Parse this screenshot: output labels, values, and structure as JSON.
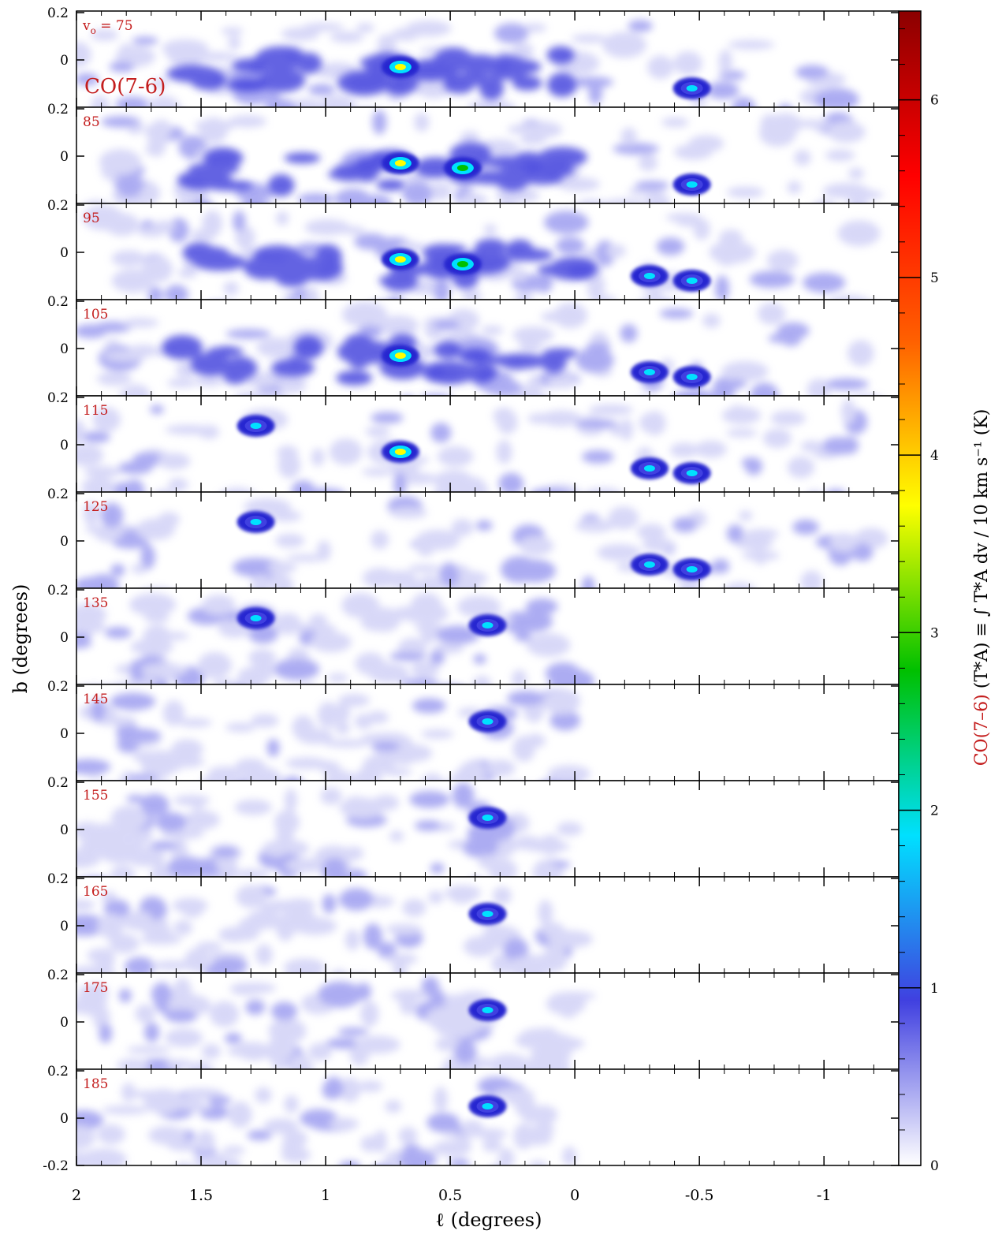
{
  "chart_data": {
    "type": "heatmap",
    "title": "",
    "xlabel": "ℓ (degrees)",
    "ylabel": "b (degrees)",
    "xlim": [
      2.0,
      -1.3
    ],
    "ylim": [
      -0.28,
      0.2
    ],
    "xticks": [
      2,
      1.5,
      1,
      0.5,
      0,
      -0.5,
      -1
    ],
    "xtick_labels": [
      "2",
      "1.5",
      "1",
      "0.5",
      "0",
      "-0.5",
      "-1"
    ],
    "yticks_top": [
      0.2,
      0
    ],
    "ytick_labels_top": [
      "0.2",
      "0"
    ],
    "yticks_bottom": [
      0.2,
      0,
      -0.2
    ],
    "ytick_labels_bottom": [
      "0.2",
      "0",
      "-0.2"
    ],
    "line_label": "CO(7-6)",
    "velocity_prefix": "v",
    "velocity_sub": "o",
    "velocity_suffix": " = 75",
    "channels": [
      "75",
      "85",
      "95",
      "105",
      "115",
      "125",
      "135",
      "145",
      "155",
      "165",
      "175",
      "185"
    ],
    "colorbar": {
      "range": [
        0,
        6.5
      ],
      "ticks": [
        0,
        1,
        2,
        3,
        4,
        5,
        6
      ],
      "tick_labels": [
        "0",
        "1",
        "2",
        "3",
        "4",
        "5",
        "6"
      ],
      "label_line": "CO(7–6)",
      "label_rest": "(T*A) ≡ ∫ T*A dv / 10 km s⁻¹ (K)",
      "line_color": "#c41e1e",
      "colors": [
        "#ffffff",
        "#4040e0",
        "#00e0ff",
        "#00c000",
        "#ffff00",
        "#ff6000",
        "#ff0000",
        "#8b0000"
      ]
    },
    "annotation_color": "#c41e1e",
    "emission_sources": [
      {
        "l": 0.7,
        "b": -0.03,
        "peak_k": 3.8,
        "channels": [
          "75",
          "85",
          "95",
          "105",
          "115"
        ]
      },
      {
        "l": 0.45,
        "b": -0.05,
        "peak_k": 2.5,
        "channels": [
          "85",
          "95"
        ]
      },
      {
        "l": -0.47,
        "b": -0.12,
        "peak_k": 2.3,
        "channels": [
          "75",
          "85",
          "95",
          "105",
          "115",
          "125"
        ]
      },
      {
        "l": -0.3,
        "b": -0.1,
        "peak_k": 1.8,
        "channels": [
          "95",
          "105",
          "115",
          "125"
        ]
      },
      {
        "l": 1.28,
        "b": 0.08,
        "peak_k": 1.4,
        "channels": [
          "115",
          "125",
          "135"
        ]
      },
      {
        "l": 0.35,
        "b": 0.05,
        "peak_k": 1.5,
        "channels": [
          "135",
          "145",
          "155",
          "165",
          "175",
          "185"
        ]
      }
    ]
  }
}
